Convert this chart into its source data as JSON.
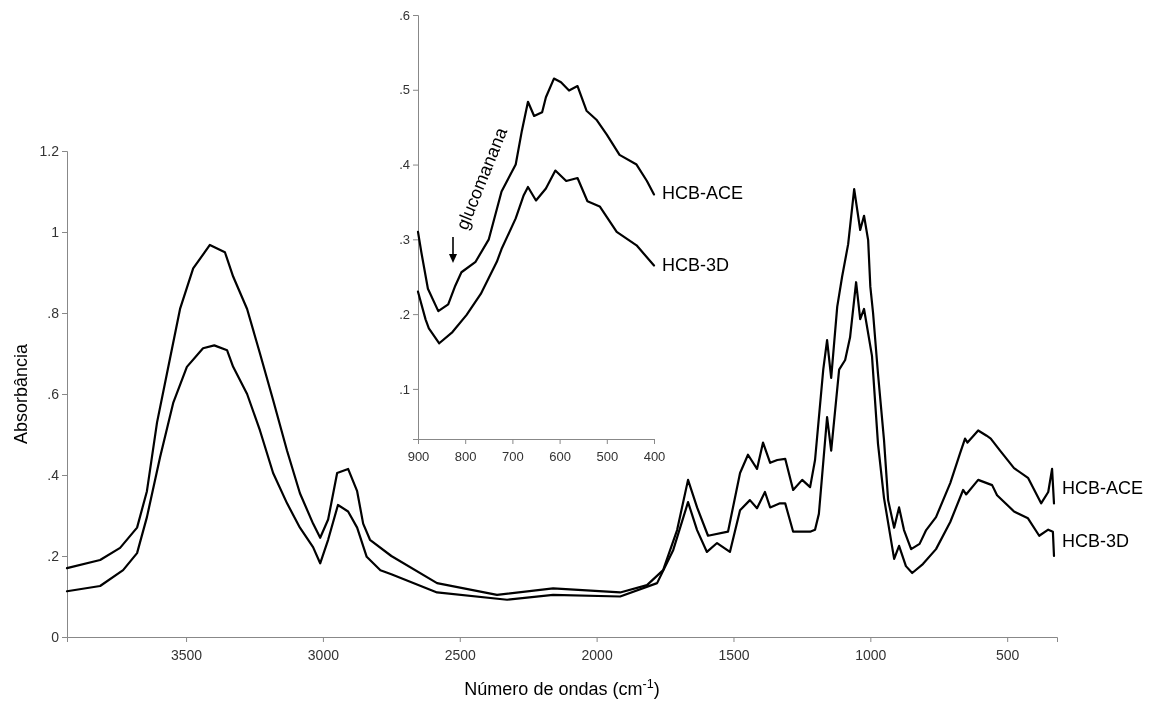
{
  "chart_data": [
    {
      "type": "line",
      "xlabel": "Número de ondas (cm$^{-1}$)",
      "ylabel": "Absorbância",
      "xlim": [
        3935,
        318
      ],
      "ylim": [
        0,
        1.2
      ],
      "xticks": [
        3500,
        3000,
        2500,
        2000,
        1500,
        1000,
        500
      ],
      "yticks": [
        0,
        {
          "value": 0.2,
          "label": ".2"
        },
        {
          "value": 0.4,
          "label": ".4"
        },
        {
          "value": 0.6,
          "label": ".6"
        },
        {
          "value": 0.8,
          "label": ".8"
        },
        1,
        1.2
      ],
      "grid": false,
      "series": [
        {
          "name": "HCB-ACE",
          "color": "#000000",
          "x": [
            3935,
            3814,
            3741,
            3679,
            3643,
            3606,
            3570,
            3522,
            3474,
            3413,
            3358,
            3328,
            3277,
            3230,
            3182,
            3131,
            3084,
            3036,
            3010,
            2981,
            2948,
            2908,
            2875,
            2853,
            2828,
            2750,
            2583,
            2364,
            2159,
            1914,
            1816,
            1757,
            1706,
            1666,
            1633,
            1593,
            1520,
            1476,
            1447,
            1414,
            1392,
            1366,
            1340,
            1311,
            1282,
            1249,
            1220,
            1202,
            1172,
            1158,
            1143,
            1121,
            1103,
            1081,
            1059,
            1037,
            1023,
            1008,
            1000,
            990,
            972,
            950,
            935,
            913,
            895,
            877,
            851,
            820,
            796,
            760,
            708,
            672,
            654,
            645,
            606,
            575,
            560,
            526,
            475,
            424,
            376,
            350,
            336,
            329
          ],
          "values": [
            0.17,
            0.19,
            0.22,
            0.27,
            0.36,
            0.53,
            0.65,
            0.81,
            0.91,
            0.968,
            0.95,
            0.89,
            0.81,
            0.7,
            0.585,
            0.46,
            0.355,
            0.28,
            0.245,
            0.29,
            0.405,
            0.415,
            0.36,
            0.28,
            0.24,
            0.2,
            0.133,
            0.104,
            0.12,
            0.11,
            0.128,
            0.165,
            0.264,
            0.388,
            0.32,
            0.25,
            0.26,
            0.405,
            0.45,
            0.415,
            0.48,
            0.43,
            0.437,
            0.44,
            0.363,
            0.388,
            0.37,
            0.437,
            0.66,
            0.733,
            0.64,
            0.815,
            0.89,
            0.97,
            1.106,
            1.005,
            1.04,
            0.98,
            0.865,
            0.8,
            0.65,
            0.486,
            0.338,
            0.27,
            0.32,
            0.264,
            0.217,
            0.23,
            0.264,
            0.296,
            0.38,
            0.454,
            0.49,
            0.48,
            0.51,
            0.497,
            0.49,
            0.46,
            0.417,
            0.393,
            0.33,
            0.358,
            0.415,
            0.33
          ]
        },
        {
          "name": "HCB-3D",
          "color": "#000000",
          "x": [
            3935,
            3814,
            3730,
            3679,
            3643,
            3595,
            3547,
            3497,
            3438,
            3397,
            3350,
            3328,
            3277,
            3230,
            3182,
            3131,
            3084,
            3036,
            3010,
            2981,
            2945,
            2908,
            2875,
            2840,
            2790,
            2750,
            2583,
            2327,
            2159,
            1914,
            1779,
            1720,
            1666,
            1633,
            1597,
            1560,
            1513,
            1476,
            1440,
            1414,
            1385,
            1366,
            1330,
            1311,
            1282,
            1220,
            1202,
            1188,
            1158,
            1143,
            1114,
            1092,
            1074,
            1052,
            1037,
            1023,
            994,
            972,
            950,
            913,
            895,
            870,
            847,
            808,
            760,
            708,
            661,
            650,
            606,
            555,
            537,
            475,
            424,
            383,
            350,
            333,
            329
          ],
          "values": [
            0.113,
            0.126,
            0.165,
            0.207,
            0.296,
            0.444,
            0.578,
            0.667,
            0.713,
            0.72,
            0.708,
            0.667,
            0.6,
            0.51,
            0.405,
            0.33,
            0.27,
            0.222,
            0.182,
            0.24,
            0.326,
            0.31,
            0.27,
            0.198,
            0.165,
            0.155,
            0.11,
            0.092,
            0.104,
            0.1,
            0.133,
            0.215,
            0.333,
            0.264,
            0.21,
            0.232,
            0.21,
            0.313,
            0.338,
            0.318,
            0.358,
            0.32,
            0.33,
            0.33,
            0.26,
            0.26,
            0.265,
            0.304,
            0.543,
            0.46,
            0.66,
            0.684,
            0.74,
            0.876,
            0.785,
            0.81,
            0.694,
            0.477,
            0.343,
            0.193,
            0.225,
            0.175,
            0.158,
            0.18,
            0.217,
            0.284,
            0.363,
            0.352,
            0.388,
            0.375,
            0.35,
            0.31,
            0.293,
            0.25,
            0.265,
            0.26,
            0.2
          ]
        }
      ]
    },
    {
      "type": "line",
      "xlim": [
        900,
        400
      ],
      "ylim": [
        0.033,
        0.6
      ],
      "xticks": [
        900,
        800,
        700,
        600,
        500,
        400
      ],
      "yticks": [
        {
          "value": 0.1,
          "label": ".1"
        },
        {
          "value": 0.2,
          "label": ".2"
        },
        {
          "value": 0.3,
          "label": ".3"
        },
        {
          "value": 0.4,
          "label": ".4"
        },
        {
          "value": 0.5,
          "label": ".5"
        },
        {
          "value": 0.6,
          "label": ".6"
        }
      ],
      "grid": false,
      "annotations": [
        "glucomanana"
      ],
      "series": [
        {
          "name": "HCB-ACE",
          "color": "#000000",
          "x": [
            900,
            893,
            879,
            857,
            836,
            821,
            808,
            778,
            750,
            723,
            693,
            680,
            667,
            654,
            637,
            629,
            612,
            597,
            580,
            562,
            543,
            522,
            500,
            473,
            437,
            415,
            400
          ],
          "values": [
            0.31,
            0.283,
            0.234,
            0.204,
            0.213,
            0.238,
            0.256,
            0.27,
            0.3,
            0.364,
            0.4,
            0.445,
            0.484,
            0.465,
            0.47,
            0.49,
            0.515,
            0.51,
            0.499,
            0.505,
            0.472,
            0.46,
            0.44,
            0.413,
            0.4,
            0.378,
            0.36
          ]
        },
        {
          "name": "HCB-3D",
          "color": "#000000",
          "x": [
            900,
            884,
            877,
            855,
            827,
            797,
            767,
            733,
            723,
            693,
            676,
            667,
            650,
            629,
            609,
            586,
            562,
            541,
            515,
            479,
            437,
            400
          ],
          "values": [
            0.23,
            0.193,
            0.181,
            0.161,
            0.176,
            0.199,
            0.227,
            0.27,
            0.287,
            0.328,
            0.359,
            0.37,
            0.352,
            0.368,
            0.392,
            0.378,
            0.382,
            0.351,
            0.344,
            0.31,
            0.292,
            0.265
          ]
        }
      ]
    }
  ]
}
